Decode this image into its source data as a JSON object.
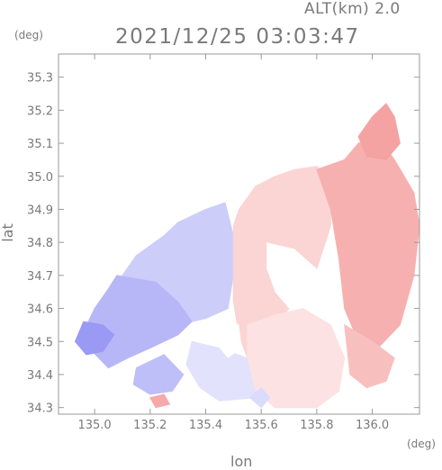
{
  "header": {
    "altitude_label": "ALT(km) 2.0",
    "timestamp": "2021/12/25 03:03:47"
  },
  "chart_data": {
    "type": "heatmap",
    "title": "2021/12/25 03:03:47",
    "subtitle": "ALT(km) 2.0",
    "xlabel": "lon",
    "ylabel": "lat",
    "x_unit": "(deg)",
    "y_unit": "(deg)",
    "xlim": [
      134.87,
      136.17
    ],
    "ylim": [
      34.28,
      35.37
    ],
    "x_ticks": [
      135.0,
      135.2,
      135.4,
      135.6,
      135.8,
      136.0
    ],
    "x_tick_labels": [
      "135.0",
      "135.2",
      "135.4",
      "135.6",
      "135.8",
      "136.0"
    ],
    "y_ticks": [
      34.3,
      34.4,
      34.5,
      34.6,
      34.7,
      34.8,
      34.9,
      35.0,
      35.1,
      35.2,
      35.3
    ],
    "y_tick_labels": [
      "34.3",
      "34.4",
      "34.5",
      "34.6",
      "34.7",
      "34.8",
      "34.9",
      "35.0",
      "35.1",
      "35.2",
      "35.3"
    ],
    "grid": false,
    "colors": {
      "negative": "#6f6ff0",
      "positive": "#f07070",
      "neutral": "#ffffff"
    },
    "regions": [
      {
        "sign": "negative",
        "intensity": 0.35,
        "polygon": [
          [
            135.47,
            34.92
          ],
          [
            135.4,
            34.9
          ],
          [
            135.3,
            34.86
          ],
          [
            135.25,
            34.82
          ],
          [
            135.15,
            34.76
          ],
          [
            135.1,
            34.7
          ],
          [
            135.05,
            34.63
          ],
          [
            135.1,
            34.6
          ],
          [
            135.2,
            34.55
          ],
          [
            135.3,
            34.55
          ],
          [
            135.4,
            34.57
          ],
          [
            135.48,
            34.6
          ],
          [
            135.5,
            34.7
          ],
          [
            135.5,
            34.82
          ]
        ]
      },
      {
        "sign": "negative",
        "intensity": 0.5,
        "polygon": [
          [
            135.08,
            34.7
          ],
          [
            135.22,
            34.68
          ],
          [
            135.3,
            34.62
          ],
          [
            135.35,
            34.56
          ],
          [
            135.3,
            34.52
          ],
          [
            135.2,
            34.48
          ],
          [
            135.12,
            34.45
          ],
          [
            135.05,
            34.42
          ],
          [
            134.98,
            34.48
          ],
          [
            134.96,
            34.53
          ],
          [
            135.0,
            34.6
          ],
          [
            135.05,
            34.66
          ]
        ]
      },
      {
        "sign": "negative",
        "intensity": 0.7,
        "polygon": [
          [
            134.96,
            34.56
          ],
          [
            135.03,
            34.55
          ],
          [
            135.07,
            34.52
          ],
          [
            135.03,
            34.47
          ],
          [
            134.97,
            34.46
          ],
          [
            134.93,
            34.5
          ]
        ]
      },
      {
        "sign": "negative",
        "intensity": 0.2,
        "polygon": [
          [
            135.35,
            34.5
          ],
          [
            135.45,
            34.48
          ],
          [
            135.55,
            34.45
          ],
          [
            135.6,
            34.38
          ],
          [
            135.58,
            34.33
          ],
          [
            135.45,
            34.32
          ],
          [
            135.38,
            34.36
          ],
          [
            135.33,
            34.43
          ]
        ]
      },
      {
        "sign": "negative",
        "intensity": 0.45,
        "polygon": [
          [
            135.15,
            34.42
          ],
          [
            135.25,
            34.46
          ],
          [
            135.32,
            34.4
          ],
          [
            135.28,
            34.35
          ],
          [
            135.2,
            34.34
          ],
          [
            135.14,
            34.37
          ]
        ]
      },
      {
        "sign": "positive",
        "intensity": 0.3,
        "polygon": [
          [
            135.52,
            34.9
          ],
          [
            135.58,
            34.97
          ],
          [
            135.65,
            35.0
          ],
          [
            135.72,
            35.02
          ],
          [
            135.8,
            35.03
          ],
          [
            135.85,
            35.0
          ],
          [
            135.85,
            34.85
          ],
          [
            135.8,
            34.72
          ],
          [
            135.72,
            34.62
          ],
          [
            135.65,
            34.55
          ],
          [
            135.6,
            34.48
          ],
          [
            135.55,
            34.45
          ],
          [
            135.52,
            34.52
          ],
          [
            135.5,
            34.62
          ],
          [
            135.5,
            34.75
          ],
          [
            135.5,
            34.85
          ]
        ]
      },
      {
        "sign": "positive",
        "intensity": 0.2,
        "polygon": [
          [
            135.55,
            34.55
          ],
          [
            135.65,
            34.58
          ],
          [
            135.75,
            34.6
          ],
          [
            135.85,
            34.55
          ],
          [
            135.9,
            34.45
          ],
          [
            135.88,
            34.35
          ],
          [
            135.8,
            34.3
          ],
          [
            135.65,
            34.3
          ],
          [
            135.58,
            34.35
          ],
          [
            135.55,
            34.45
          ]
        ]
      },
      {
        "sign": "positive",
        "intensity": 0.55,
        "polygon": [
          [
            135.8,
            35.02
          ],
          [
            135.9,
            35.05
          ],
          [
            135.95,
            35.1
          ],
          [
            136.02,
            35.12
          ],
          [
            136.08,
            35.05
          ],
          [
            136.15,
            34.95
          ],
          [
            136.17,
            34.85
          ],
          [
            136.15,
            34.7
          ],
          [
            136.1,
            34.55
          ],
          [
            136.02,
            34.48
          ],
          [
            135.95,
            34.5
          ],
          [
            135.9,
            34.6
          ],
          [
            135.88,
            34.75
          ],
          [
            135.85,
            34.9
          ]
        ]
      },
      {
        "sign": "positive",
        "intensity": 0.65,
        "polygon": [
          [
            135.95,
            35.12
          ],
          [
            136.0,
            35.18
          ],
          [
            136.05,
            35.22
          ],
          [
            136.08,
            35.18
          ],
          [
            136.1,
            35.1
          ],
          [
            136.05,
            35.05
          ],
          [
            135.98,
            35.06
          ]
        ]
      },
      {
        "sign": "positive",
        "intensity": 0.45,
        "polygon": [
          [
            135.9,
            34.55
          ],
          [
            136.0,
            34.5
          ],
          [
            136.08,
            34.45
          ],
          [
            136.05,
            34.38
          ],
          [
            135.98,
            34.36
          ],
          [
            135.92,
            34.4
          ]
        ]
      },
      {
        "sign": "positive",
        "intensity": 0.6,
        "polygon": [
          [
            135.2,
            34.33
          ],
          [
            135.25,
            34.34
          ],
          [
            135.27,
            34.31
          ],
          [
            135.22,
            34.3
          ]
        ]
      },
      {
        "sign": "negative",
        "intensity": 0.25,
        "polygon": [
          [
            135.56,
            34.33
          ],
          [
            135.6,
            34.36
          ],
          [
            135.63,
            34.33
          ],
          [
            135.6,
            34.3
          ]
        ]
      }
    ],
    "gaps": [
      {
        "polygon": [
          [
            135.62,
            34.8
          ],
          [
            135.72,
            34.78
          ],
          [
            135.8,
            34.72
          ],
          [
            135.78,
            34.65
          ],
          [
            135.7,
            34.6
          ],
          [
            135.65,
            34.65
          ],
          [
            135.62,
            34.72
          ]
        ]
      },
      {
        "polygon": [
          [
            135.46,
            34.58
          ],
          [
            135.52,
            34.55
          ],
          [
            135.53,
            34.48
          ],
          [
            135.48,
            34.45
          ],
          [
            135.43,
            34.5
          ]
        ]
      }
    ]
  }
}
